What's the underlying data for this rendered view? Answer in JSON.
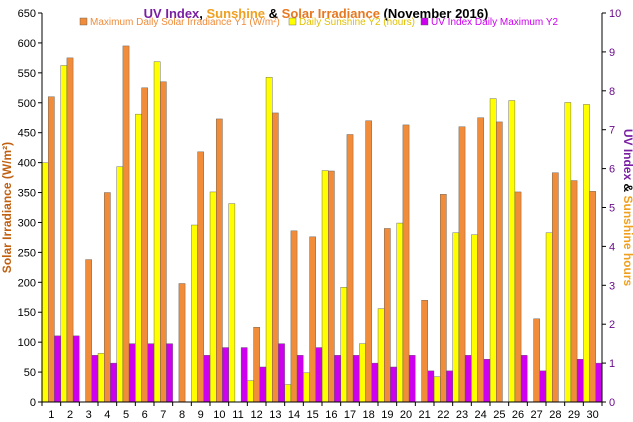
{
  "chart_data": {
    "type": "bar",
    "title_parts": [
      {
        "text": "UV Index",
        "color": "#7a1fa2"
      },
      {
        "text": ", ",
        "color": "#000000"
      },
      {
        "text": "Sunshine",
        "color": "#f0a020"
      },
      {
        "text": " & ",
        "color": "#000000"
      },
      {
        "text": "Solar Irradiance",
        "color": "#e87820"
      },
      {
        "text": " (November 2016)",
        "color": "#000000"
      }
    ],
    "ylabel_left": "Solar Irradiance (W/m²)",
    "ylabel_left_color": "#c06010",
    "ylabel_right_parts": [
      {
        "text": "UV Index",
        "color": "#7a1fa2"
      },
      {
        "text": " & ",
        "color": "#000000"
      },
      {
        "text": "Sunshine hours",
        "color": "#f0a020"
      }
    ],
    "ylim_left": [
      0,
      650
    ],
    "ylim_right": [
      0,
      10
    ],
    "yticks_left": [
      0,
      50,
      100,
      150,
      200,
      250,
      300,
      350,
      400,
      450,
      500,
      550,
      600,
      650
    ],
    "yticks_right": [
      0,
      1,
      2,
      3,
      4,
      5,
      6,
      7,
      8,
      9,
      10
    ],
    "categories": [
      "1",
      "2",
      "3",
      "4",
      "5",
      "6",
      "7",
      "8",
      "9",
      "10",
      "11",
      "12",
      "13",
      "14",
      "15",
      "16",
      "17",
      "18",
      "19",
      "20",
      "21",
      "22",
      "23",
      "24",
      "25",
      "26",
      "27",
      "28",
      "29",
      "30"
    ],
    "grid": false,
    "legend_position": "top",
    "series": [
      {
        "name": "Daily Sunshine Y2 (hours)",
        "axis": "right",
        "color": "#ffff00",
        "values": [
          6.15,
          8.65,
          0,
          1.25,
          6.05,
          7.4,
          8.75,
          0,
          4.55,
          5.4,
          5.1,
          0.55,
          8.35,
          0.45,
          0.75,
          5.95,
          2.95,
          1.5,
          2.4,
          4.6,
          0,
          0.65,
          4.35,
          4.3,
          7.8,
          7.75,
          0,
          4.35,
          7.7,
          7.65
        ]
      },
      {
        "name": "Maximum Daily Solar Irradiance Y1 (W/m²)",
        "axis": "left",
        "color": "#f08c3a",
        "values": [
          510,
          575,
          238,
          350,
          595,
          525,
          535,
          198,
          418,
          473,
          0,
          125,
          483,
          286,
          276,
          386,
          447,
          470,
          290,
          463,
          170,
          347,
          460,
          475,
          468,
          351,
          139,
          383,
          370,
          352
        ]
      },
      {
        "name": "UV Index Daily Maximum Y2",
        "axis": "right",
        "color": "#cc00ee",
        "values": [
          1.7,
          1.7,
          1.2,
          1.0,
          1.5,
          1.5,
          1.5,
          0,
          1.2,
          1.4,
          1.4,
          0.9,
          1.5,
          1.2,
          1.4,
          1.2,
          1.2,
          1.0,
          0.9,
          1.2,
          0.8,
          0.8,
          1.2,
          1.1,
          0,
          1.2,
          0.8,
          0,
          1.1,
          1.0
        ]
      }
    ]
  }
}
